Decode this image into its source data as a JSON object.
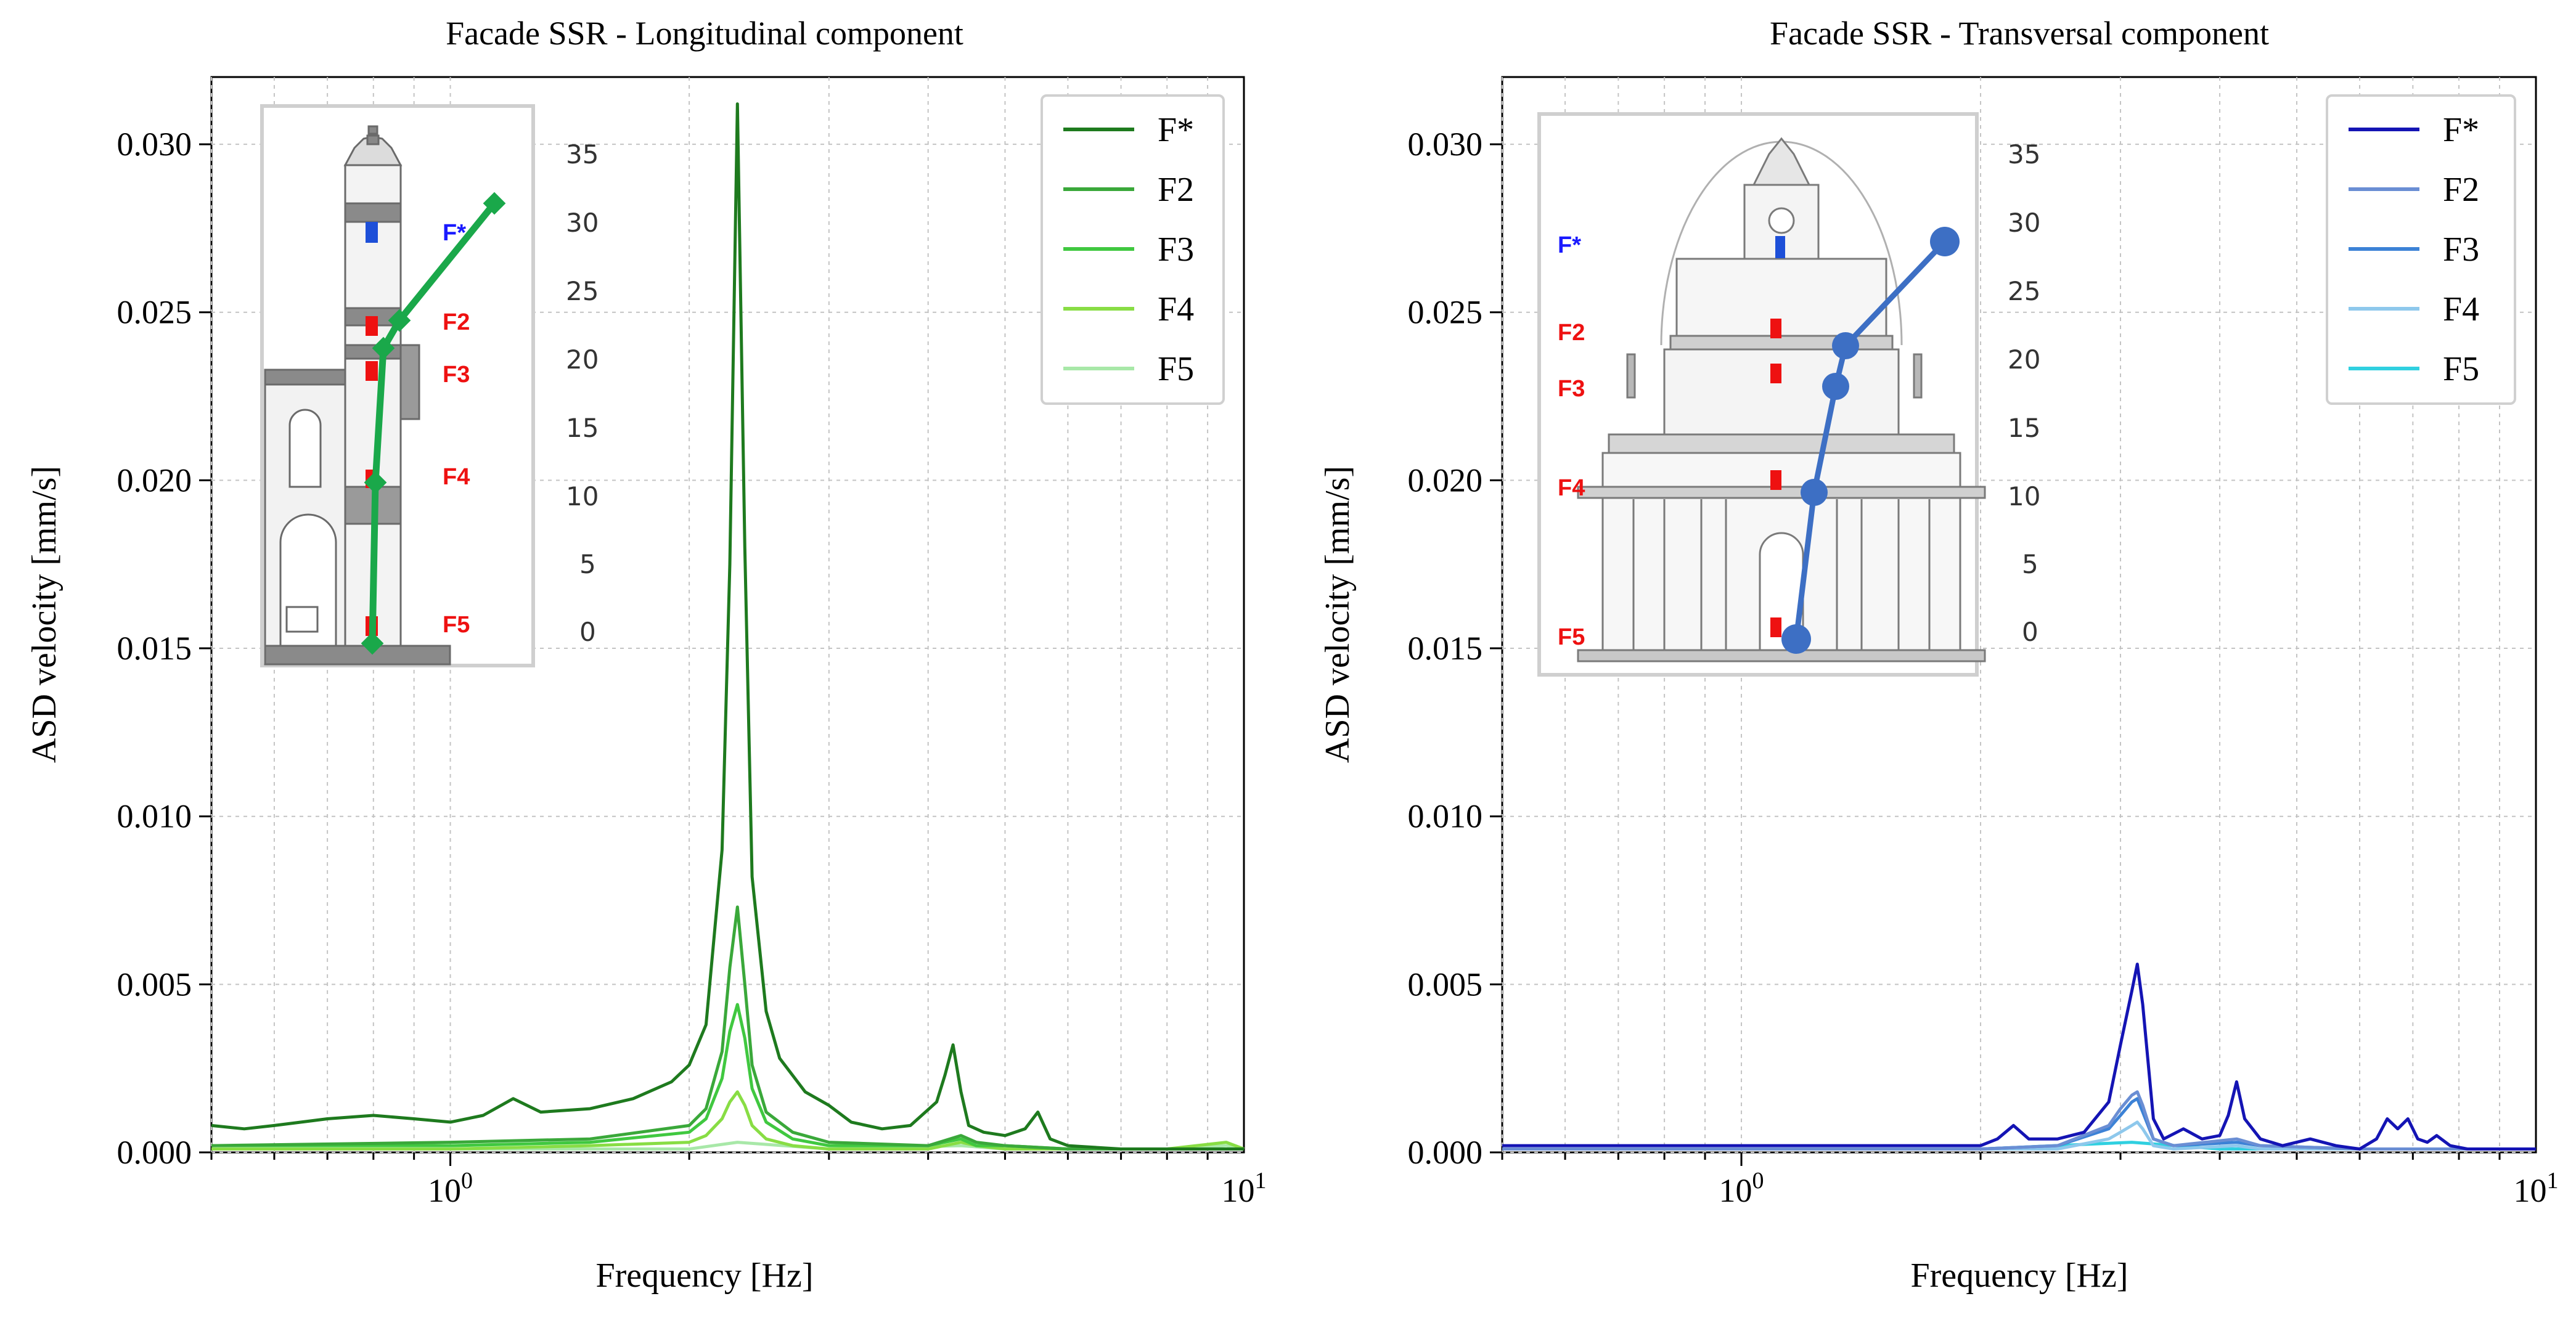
{
  "chart_data": [
    {
      "type": "line",
      "title": "Facade SSR - Longitudinal component",
      "xlabel": "Frequency [Hz]",
      "ylabel": "ASD velocity [mm/s]",
      "xscale": "log",
      "xlim": [
        0.5,
        10
      ],
      "ylim": [
        0,
        0.032
      ],
      "xtick_labels": [
        {
          "v": 1,
          "base": "10",
          "exp": "0"
        },
        {
          "v": 10,
          "base": "10",
          "exp": "1"
        }
      ],
      "yticks": [
        0.0,
        0.005,
        0.01,
        0.015,
        0.02,
        0.025,
        0.03
      ],
      "ytick_labels": [
        "0.000",
        "0.005",
        "0.010",
        "0.015",
        "0.020",
        "0.025",
        "0.030"
      ],
      "grid": true,
      "legend_position": "top-right",
      "series": [
        {
          "name": "F*",
          "color": "#1e7a1e",
          "width": 5,
          "x": [
            0.5,
            0.55,
            0.6,
            0.7,
            0.8,
            0.9,
            1.0,
            1.1,
            1.2,
            1.3,
            1.5,
            1.7,
            1.9,
            2.0,
            2.1,
            2.2,
            2.25,
            2.3,
            2.35,
            2.4,
            2.5,
            2.6,
            2.8,
            3.0,
            3.2,
            3.5,
            3.8,
            4.1,
            4.2,
            4.3,
            4.4,
            4.5,
            4.7,
            5.0,
            5.3,
            5.5,
            5.7,
            6.0,
            7.0,
            8.0,
            10.0
          ],
          "y": [
            0.0008,
            0.0007,
            0.0008,
            0.001,
            0.0011,
            0.001,
            0.0009,
            0.0011,
            0.0016,
            0.0012,
            0.0013,
            0.0016,
            0.0021,
            0.0026,
            0.0038,
            0.009,
            0.0175,
            0.0312,
            0.018,
            0.0082,
            0.0042,
            0.0028,
            0.0018,
            0.0014,
            0.0009,
            0.0007,
            0.0008,
            0.0015,
            0.0023,
            0.0032,
            0.0018,
            0.0008,
            0.0006,
            0.0005,
            0.0007,
            0.0012,
            0.0004,
            0.0002,
            0.0001,
            0.0001,
            0.0001
          ]
        },
        {
          "name": "F2",
          "color": "#3aa83a",
          "width": 5,
          "x": [
            0.5,
            1.0,
            1.5,
            2.0,
            2.1,
            2.2,
            2.25,
            2.3,
            2.35,
            2.4,
            2.5,
            2.7,
            3.0,
            4.0,
            4.4,
            4.6,
            5.0,
            6.0,
            8.0,
            10.0
          ],
          "y": [
            0.0002,
            0.0003,
            0.0004,
            0.0008,
            0.0013,
            0.003,
            0.0055,
            0.0073,
            0.005,
            0.0026,
            0.0012,
            0.0006,
            0.0003,
            0.0002,
            0.0005,
            0.0003,
            0.0002,
            0.0001,
            0.0001,
            0.0001
          ]
        },
        {
          "name": "F3",
          "color": "#40c840",
          "width": 5,
          "x": [
            0.5,
            1.0,
            1.5,
            2.0,
            2.1,
            2.2,
            2.25,
            2.3,
            2.35,
            2.4,
            2.5,
            2.7,
            3.0,
            4.0,
            4.4,
            4.6,
            5.0,
            6.0,
            8.0,
            10.0
          ],
          "y": [
            0.0002,
            0.0002,
            0.0003,
            0.0006,
            0.001,
            0.0022,
            0.0036,
            0.0044,
            0.0034,
            0.0019,
            0.0009,
            0.0004,
            0.0002,
            0.0002,
            0.0004,
            0.0002,
            0.0002,
            0.0001,
            0.0001,
            0.0001
          ]
        },
        {
          "name": "F4",
          "color": "#88dd44",
          "width": 5,
          "x": [
            0.5,
            1.0,
            1.5,
            2.0,
            2.1,
            2.2,
            2.25,
            2.3,
            2.35,
            2.4,
            2.5,
            2.7,
            3.0,
            4.0,
            4.4,
            4.6,
            5.0,
            6.0,
            8.0,
            9.5,
            10.0
          ],
          "y": [
            0.0001,
            0.0001,
            0.0002,
            0.0003,
            0.0005,
            0.001,
            0.0015,
            0.0018,
            0.0014,
            0.0008,
            0.0004,
            0.0002,
            0.0001,
            0.0001,
            0.0003,
            0.0002,
            0.0001,
            0.0001,
            0.0001,
            0.0003,
            0.0001
          ]
        },
        {
          "name": "F5",
          "color": "#a8e8a8",
          "width": 5,
          "x": [
            0.5,
            1.0,
            2.0,
            2.3,
            3.0,
            4.4,
            5.0,
            8.0,
            9.5,
            10.0
          ],
          "y": [
            0.0001,
            0.0001,
            0.0001,
            0.0003,
            0.0001,
            0.0002,
            0.0001,
            0.0001,
            0.0002,
            0.0001
          ]
        }
      ],
      "inset": {
        "scale_labels": [
          "35",
          "30",
          "25",
          "20",
          "15",
          "10",
          "5",
          "0"
        ],
        "sensor_labels": [
          "F*",
          "F2",
          "F3",
          "F4",
          "F5"
        ],
        "sensor_label_colors": [
          "#1a1aff",
          "#ee1111",
          "#ee1111",
          "#ee1111",
          "#ee1111"
        ],
        "mode_shape_color": "#1aa84a"
      }
    },
    {
      "type": "line",
      "title": "Facade SSR - Transversal component",
      "xlabel": "Frequency [Hz]",
      "ylabel": "ASD velocity [mm/s]",
      "xscale": "log",
      "xlim": [
        0.5,
        10
      ],
      "ylim": [
        0,
        0.032
      ],
      "xtick_labels": [
        {
          "v": 1,
          "base": "10",
          "exp": "0"
        },
        {
          "v": 10,
          "base": "10",
          "exp": "1"
        }
      ],
      "yticks": [
        0.0,
        0.005,
        0.01,
        0.015,
        0.02,
        0.025,
        0.03
      ],
      "ytick_labels": [
        "0.000",
        "0.005",
        "0.010",
        "0.015",
        "0.020",
        "0.025",
        "0.030"
      ],
      "grid": true,
      "legend_position": "top-right",
      "series": [
        {
          "name": "F*",
          "color": "#1414b4",
          "width": 5,
          "x": [
            0.5,
            1.0,
            1.5,
            2.0,
            2.1,
            2.2,
            2.3,
            2.5,
            2.7,
            2.9,
            3.0,
            3.1,
            3.15,
            3.2,
            3.3,
            3.4,
            3.6,
            3.8,
            4.0,
            4.1,
            4.2,
            4.3,
            4.5,
            4.8,
            5.2,
            5.6,
            6.0,
            6.3,
            6.5,
            6.7,
            6.9,
            7.1,
            7.3,
            7.5,
            7.8,
            8.2,
            9.0,
            10.0
          ],
          "y": [
            0.0002,
            0.0002,
            0.0002,
            0.0002,
            0.0004,
            0.0008,
            0.0004,
            0.0004,
            0.0006,
            0.0015,
            0.0032,
            0.0048,
            0.0056,
            0.0044,
            0.001,
            0.0004,
            0.0007,
            0.0004,
            0.0005,
            0.0011,
            0.0021,
            0.001,
            0.0004,
            0.0002,
            0.0004,
            0.0002,
            0.0001,
            0.0004,
            0.001,
            0.0007,
            0.001,
            0.0004,
            0.0003,
            0.0005,
            0.0002,
            0.0001,
            0.0001,
            0.0001
          ]
        },
        {
          "name": "F2",
          "color": "#6a8ed4",
          "width": 5,
          "x": [
            0.5,
            2.0,
            2.5,
            2.9,
            3.0,
            3.1,
            3.15,
            3.2,
            3.3,
            3.5,
            4.2,
            4.5,
            6.0,
            10.0
          ],
          "y": [
            0.0001,
            0.0001,
            0.0002,
            0.0008,
            0.0013,
            0.0017,
            0.0018,
            0.0014,
            0.0004,
            0.0002,
            0.0004,
            0.0002,
            0.0001,
            0.0001
          ]
        },
        {
          "name": "F3",
          "color": "#3c82d6",
          "width": 5,
          "x": [
            0.5,
            2.0,
            2.5,
            2.9,
            3.0,
            3.1,
            3.15,
            3.2,
            3.3,
            3.5,
            4.2,
            4.5,
            6.0,
            10.0
          ],
          "y": [
            0.0001,
            0.0001,
            0.0002,
            0.0007,
            0.0011,
            0.0015,
            0.0016,
            0.0012,
            0.0004,
            0.0002,
            0.0003,
            0.0002,
            0.0001,
            0.0001
          ]
        },
        {
          "name": "F4",
          "color": "#8ec8ec",
          "width": 5,
          "x": [
            0.5,
            2.0,
            2.5,
            2.9,
            3.0,
            3.1,
            3.15,
            3.2,
            3.3,
            3.5,
            4.2,
            4.5,
            6.0,
            10.0
          ],
          "y": [
            0.0001,
            0.0001,
            0.0001,
            0.0004,
            0.0006,
            0.0008,
            0.0009,
            0.0007,
            0.0002,
            0.0001,
            0.0002,
            0.0001,
            0.0001,
            0.0001
          ]
        },
        {
          "name": "F5",
          "color": "#30d0e0",
          "width": 5,
          "x": [
            0.5,
            2.0,
            3.1,
            4.0,
            6.0,
            10.0
          ],
          "y": [
            0.0001,
            0.0001,
            0.0003,
            0.0001,
            0.0001,
            0.0001
          ]
        }
      ],
      "inset": {
        "scale_labels": [
          "35",
          "30",
          "25",
          "20",
          "15",
          "10",
          "5",
          "0"
        ],
        "sensor_labels": [
          "F*",
          "F2",
          "F3",
          "F4",
          "F5"
        ],
        "sensor_label_colors": [
          "#1a1aff",
          "#ee1111",
          "#ee1111",
          "#ee1111",
          "#ee1111"
        ],
        "mode_shape_color": "#3d6fc4"
      }
    }
  ]
}
